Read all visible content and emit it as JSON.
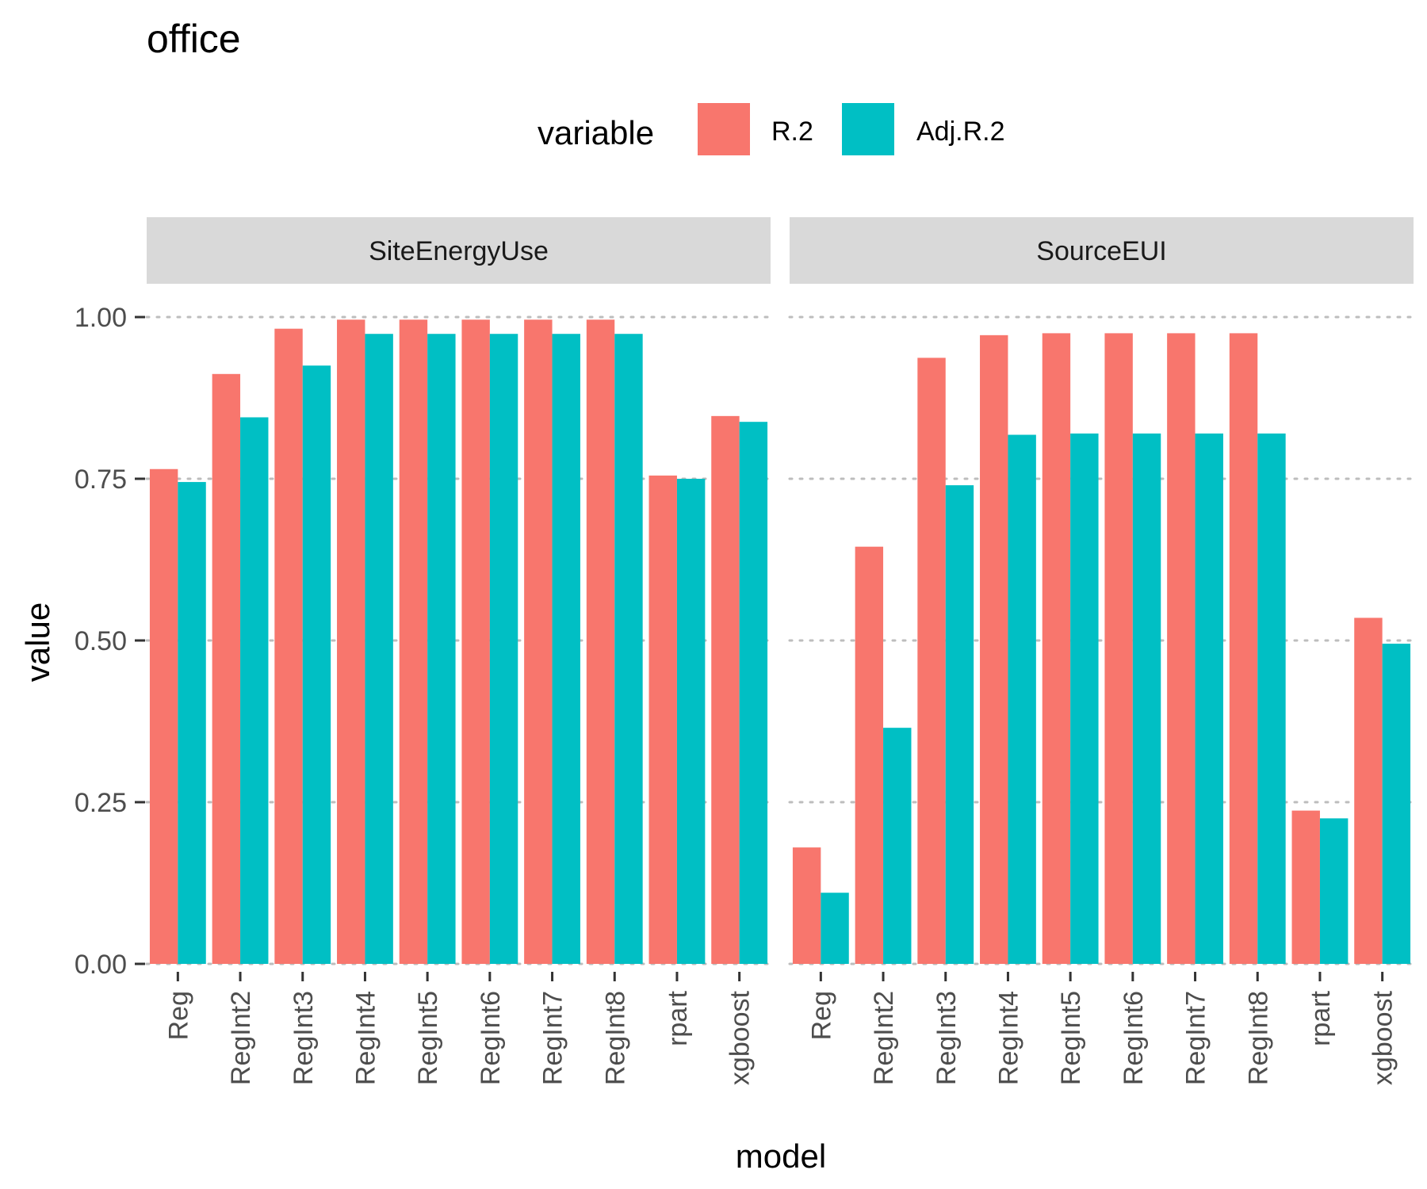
{
  "chart_data": {
    "type": "bar",
    "title": "office",
    "xlabel": "model",
    "ylabel": "value",
    "ylim": [
      0,
      1.0
    ],
    "yticks": [
      "0.00",
      "0.25",
      "0.50",
      "0.75",
      "1.00"
    ],
    "ytick_values": [
      0,
      0.25,
      0.5,
      0.75,
      1.0
    ],
    "grid": "dotted-horizontal",
    "legend": {
      "title": "variable",
      "placement": "top",
      "entries": [
        {
          "name": "R.2",
          "color": "#F8766D"
        },
        {
          "name": "Adj.R.2",
          "color": "#00BFC4"
        }
      ]
    },
    "categories": [
      "Reg",
      "RegInt2",
      "RegInt3",
      "RegInt4",
      "RegInt5",
      "RegInt6",
      "RegInt7",
      "RegInt8",
      "rpart",
      "xgboost"
    ],
    "facets": [
      {
        "name": "SiteEnergyUse",
        "series": [
          {
            "name": "R.2",
            "values": [
              0.765,
              0.912,
              0.982,
              0.996,
              0.996,
              0.996,
              0.996,
              0.996,
              0.755,
              0.847
            ]
          },
          {
            "name": "Adj.R.2",
            "values": [
              0.745,
              0.845,
              0.925,
              0.974,
              0.974,
              0.974,
              0.974,
              0.974,
              0.75,
              0.838
            ]
          }
        ]
      },
      {
        "name": "SourceEUI",
        "series": [
          {
            "name": "R.2",
            "values": [
              0.18,
              0.645,
              0.937,
              0.972,
              0.975,
              0.975,
              0.975,
              0.975,
              0.237,
              0.535
            ]
          },
          {
            "name": "Adj.R.2",
            "values": [
              0.11,
              0.365,
              0.74,
              0.818,
              0.82,
              0.82,
              0.82,
              0.82,
              0.225,
              0.495
            ]
          }
        ]
      }
    ]
  }
}
